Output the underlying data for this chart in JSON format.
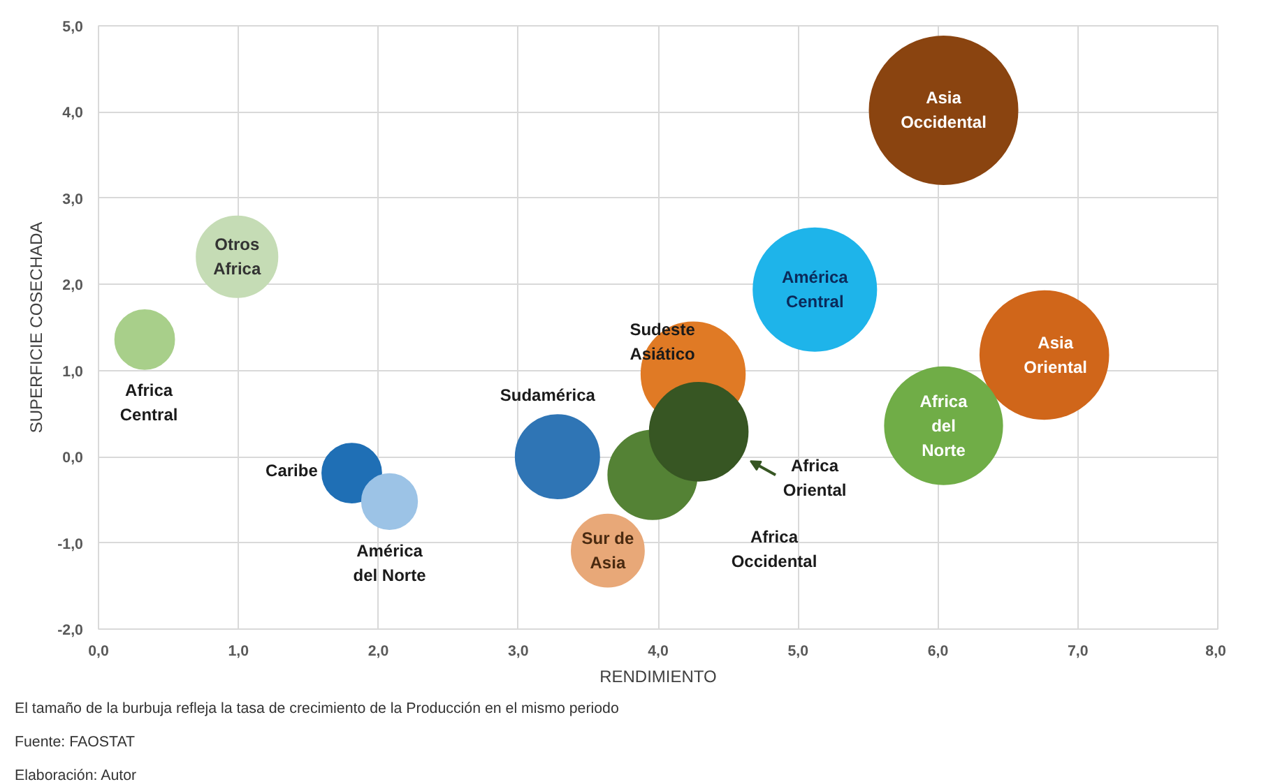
{
  "chart_data": {
    "type": "bubble",
    "xlabel": "RENDIMIENTO",
    "ylabel": "SUPERFICIE COSECHADA",
    "xlim": [
      0,
      8
    ],
    "ylim": [
      -2,
      5
    ],
    "xticks": [
      {
        "value": 0,
        "label": "0,0"
      },
      {
        "value": 1,
        "label": "1,0"
      },
      {
        "value": 2,
        "label": "2,0"
      },
      {
        "value": 3,
        "label": "3,0"
      },
      {
        "value": 4,
        "label": "4,0"
      },
      {
        "value": 5,
        "label": "5,0"
      },
      {
        "value": 6,
        "label": "6,0"
      },
      {
        "value": 7,
        "label": "7,0"
      },
      {
        "value": 8,
        "label": "8,0"
      }
    ],
    "yticks": [
      {
        "value": -2,
        "label": "-2,0"
      },
      {
        "value": -1,
        "label": "-1,0"
      },
      {
        "value": 0,
        "label": "0,0"
      },
      {
        "value": 1,
        "label": "1,0"
      },
      {
        "value": 2,
        "label": "2,0"
      },
      {
        "value": 3,
        "label": "3,0"
      },
      {
        "value": 4,
        "label": "4,0"
      },
      {
        "value": 5,
        "label": "5,0"
      }
    ],
    "grid": true,
    "series": [
      {
        "name": "Africa Central",
        "color": "#a8cf8a",
        "x": [
          0.33
        ],
        "values": [
          1.36
        ],
        "sizes": [
          0.16
        ]
      },
      {
        "name": "Otros Africa",
        "color": "#c5dcb5",
        "x": [
          0.99
        ],
        "values": [
          2.32
        ],
        "sizes": [
          0.3
        ]
      },
      {
        "name": "Caribe",
        "color": "#1f6fb5",
        "x": [
          1.81
        ],
        "values": [
          -0.19
        ],
        "sizes": [
          0.16
        ]
      },
      {
        "name": "América del Norte",
        "color": "#9cc3e6",
        "x": [
          2.08
        ],
        "values": [
          -0.52
        ],
        "sizes": [
          0.14
        ]
      },
      {
        "name": "Sudamérica",
        "color": "#2f75b5",
        "x": [
          3.28
        ],
        "values": [
          0.0
        ],
        "sizes": [
          0.32
        ]
      },
      {
        "name": "Sur de Asia",
        "color": "#e8a878",
        "x": [
          3.64
        ],
        "values": [
          -1.09
        ],
        "sizes": [
          0.24
        ]
      },
      {
        "name": "Sudeste Asiático",
        "color": "#e07a25",
        "x": [
          4.25
        ],
        "values": [
          0.96
        ],
        "sizes": [
          0.49
        ]
      },
      {
        "name": "Africa Occidental",
        "color": "#548235",
        "x": [
          3.96
        ],
        "values": [
          -0.21
        ],
        "sizes": [
          0.36
        ]
      },
      {
        "name": "Africa Oriental",
        "color": "#375623",
        "x": [
          4.29
        ],
        "values": [
          0.29
        ],
        "sizes": [
          0.44
        ]
      },
      {
        "name": "América Central",
        "color": "#1eb4ea",
        "x": [
          5.12
        ],
        "values": [
          1.94
        ],
        "sizes": [
          0.69
        ]
      },
      {
        "name": "Asia Occidental",
        "color": "#8a4410",
        "x": [
          6.04
        ],
        "values": [
          4.02
        ],
        "sizes": [
          1
        ]
      },
      {
        "name": "Asia Oriental",
        "color": "#d0661a",
        "x": [
          6.76
        ],
        "values": [
          1.18
        ],
        "sizes": [
          0.75
        ]
      },
      {
        "name": "Africa del Norte",
        "color": "#70ad47",
        "x": [
          6.04
        ],
        "values": [
          0.36
        ],
        "sizes": [
          0.63
        ]
      }
    ],
    "annotations": [
      "El tamaño de la burbuja refleja la tasa de crecimiento de la Producción en el mismo periodo",
      "Fuente: FAOSTAT",
      "Elaboración: Autor"
    ]
  }
}
